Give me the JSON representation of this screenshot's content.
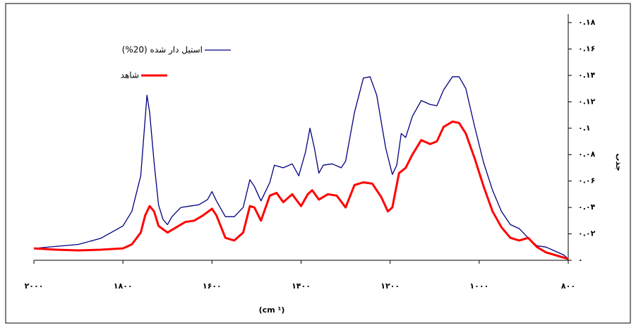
{
  "chart_data": {
    "type": "line",
    "legend_labels": null,
    "xlabel": "(cm ¹)",
    "ylabel": "جذب",
    "xlim": [
      2000,
      800
    ],
    "xticks": [
      {
        "value": 2000,
        "label": "۲۰۰۰"
      },
      {
        "value": 1800,
        "label": "۱۸۰۰"
      },
      {
        "value": 1600,
        "label": "۱۶۰۰"
      },
      {
        "value": 1400,
        "label": "۱۴۰۰"
      },
      {
        "value": 1200,
        "label": "۱۲۰۰"
      },
      {
        "value": 1000,
        "label": "۱۰۰۰"
      },
      {
        "value": 800,
        "label": "۸۰۰"
      }
    ],
    "ylim": [
      0,
      0.18
    ],
    "yticks": [
      {
        "value": 0,
        "label": "۰"
      },
      {
        "value": 0.02,
        "label": "۰.۰۲"
      },
      {
        "value": 0.04,
        "label": "۰.۰۴"
      },
      {
        "value": 0.06,
        "label": "۰.۰۶"
      },
      {
        "value": 0.08,
        "label": "۰.۰۸"
      },
      {
        "value": 0.1,
        "label": "۰.۱"
      },
      {
        "value": 0.12,
        "label": "۰.۱۲"
      },
      {
        "value": 0.14,
        "label": "۰.۱۴"
      },
      {
        "value": 0.16,
        "label": "۰.۱۶"
      },
      {
        "value": 0.18,
        "label": "۰.۱۸"
      }
    ],
    "legend": "upper left",
    "series": [
      {
        "name": "استیل دار شده (20%)",
        "color": "#000080",
        "x": [
          2000,
          1900,
          1850,
          1800,
          1780,
          1760,
          1746,
          1740,
          1730,
          1720,
          1710,
          1700,
          1690,
          1670,
          1650,
          1630,
          1610,
          1600,
          1590,
          1570,
          1550,
          1530,
          1515,
          1505,
          1490,
          1470,
          1460,
          1440,
          1420,
          1405,
          1390,
          1380,
          1370,
          1360,
          1350,
          1330,
          1310,
          1300,
          1280,
          1260,
          1245,
          1230,
          1210,
          1195,
          1185,
          1175,
          1165,
          1150,
          1130,
          1110,
          1095,
          1080,
          1060,
          1045,
          1030,
          1010,
          990,
          970,
          950,
          930,
          910,
          890,
          870,
          850,
          830,
          810,
          800
        ],
        "values": [
          0.009,
          0.012,
          0.0166,
          0.026,
          0.037,
          0.064,
          0.125,
          0.112,
          0.074,
          0.042,
          0.031,
          0.027,
          0.033,
          0.04,
          0.041,
          0.042,
          0.046,
          0.052,
          0.045,
          0.033,
          0.033,
          0.04,
          0.061,
          0.056,
          0.045,
          0.059,
          0.072,
          0.07,
          0.073,
          0.064,
          0.082,
          0.1,
          0.085,
          0.066,
          0.072,
          0.073,
          0.07,
          0.075,
          0.112,
          0.138,
          0.139,
          0.125,
          0.085,
          0.065,
          0.072,
          0.096,
          0.093,
          0.109,
          0.121,
          0.118,
          0.117,
          0.129,
          0.139,
          0.139,
          0.13,
          0.101,
          0.074,
          0.053,
          0.037,
          0.027,
          0.024,
          0.017,
          0.011,
          0.01,
          0.007,
          0.004,
          0.001
        ]
      },
      {
        "name": "شاهد",
        "color": "#ff0000",
        "x": [
          2000,
          1950,
          1900,
          1850,
          1800,
          1780,
          1760,
          1750,
          1740,
          1730,
          1720,
          1700,
          1680,
          1660,
          1640,
          1620,
          1600,
          1590,
          1570,
          1550,
          1530,
          1515,
          1505,
          1490,
          1470,
          1455,
          1440,
          1420,
          1400,
          1385,
          1375,
          1360,
          1340,
          1320,
          1300,
          1280,
          1260,
          1240,
          1220,
          1205,
          1195,
          1180,
          1165,
          1150,
          1130,
          1110,
          1095,
          1080,
          1060,
          1045,
          1030,
          1010,
          990,
          970,
          950,
          930,
          910,
          890,
          870,
          850,
          830,
          800
        ],
        "values": [
          0.009,
          0.008,
          0.0075,
          0.008,
          0.009,
          0.012,
          0.021,
          0.034,
          0.041,
          0.037,
          0.026,
          0.021,
          0.025,
          0.029,
          0.03,
          0.034,
          0.039,
          0.034,
          0.017,
          0.015,
          0.021,
          0.041,
          0.04,
          0.03,
          0.049,
          0.051,
          0.044,
          0.05,
          0.041,
          0.05,
          0.053,
          0.046,
          0.05,
          0.049,
          0.04,
          0.057,
          0.059,
          0.058,
          0.048,
          0.037,
          0.04,
          0.066,
          0.07,
          0.08,
          0.091,
          0.088,
          0.09,
          0.101,
          0.105,
          0.104,
          0.096,
          0.077,
          0.056,
          0.037,
          0.025,
          0.017,
          0.015,
          0.017,
          0.01,
          0.006,
          0.004,
          0.001
        ]
      }
    ]
  }
}
